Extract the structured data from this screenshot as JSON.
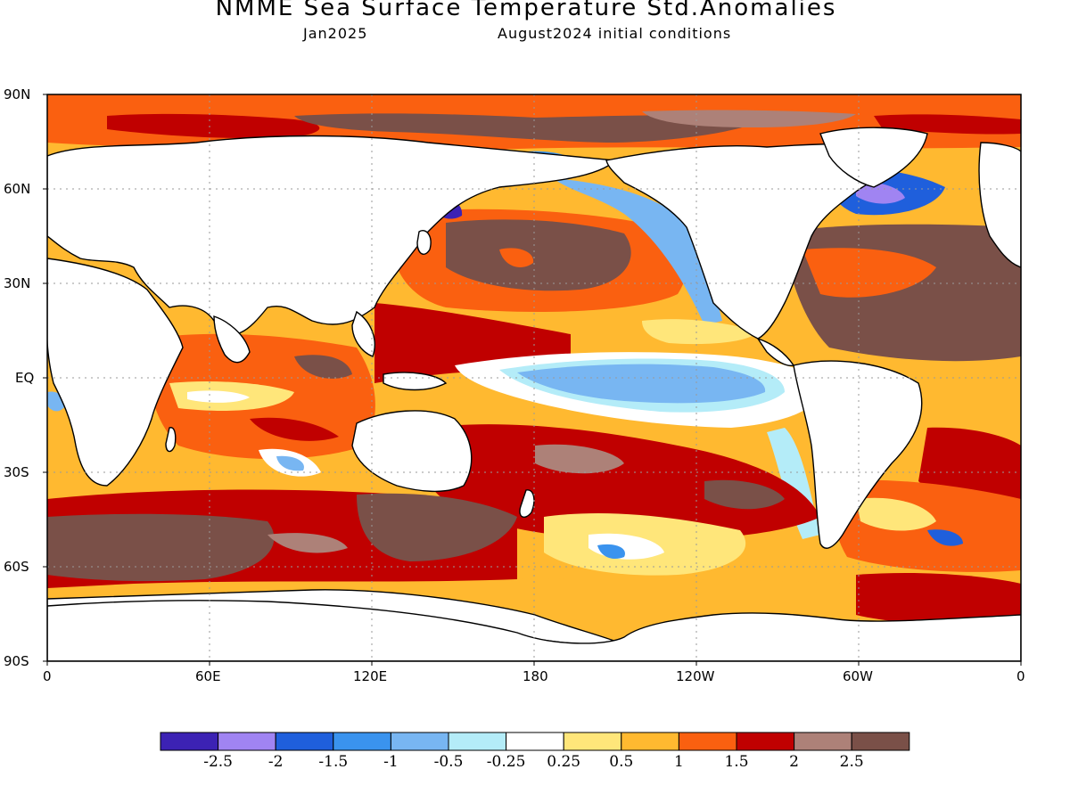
{
  "title": "NMME Sea Surface Temperature Std.Anomalies",
  "subtitle_left": "Jan2025",
  "subtitle_right": "August2024 initial conditions",
  "lat_labels": [
    "90N",
    "60N",
    "30N",
    "EQ",
    "30S",
    "60S",
    "90S"
  ],
  "lon_labels": [
    "0",
    "60E",
    "120E",
    "180",
    "120W",
    "60W",
    "0"
  ],
  "colorbar": {
    "colors": [
      "#3c22b4",
      "#a084f2",
      "#1f5fdc",
      "#3a93ee",
      "#78b6f2",
      "#b4ecf8",
      "#ffffff",
      "#ffe67a",
      "#ffb930",
      "#fa6010",
      "#c00000",
      "#ad8178",
      "#7a5048"
    ],
    "labels": [
      "-2.5",
      "-2",
      "-1.5",
      "-1",
      "-0.5",
      "-0.25",
      "0.25",
      "0.5",
      "1",
      "1.5",
      "2",
      "2.5"
    ]
  }
}
